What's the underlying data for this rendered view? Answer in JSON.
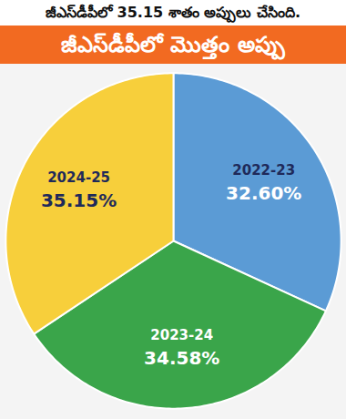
{
  "chart_data": {
    "type": "pie",
    "subtitle": "జీఎస్‌డీపీలో 35.15 శాతం అప్పులు చేసింది.",
    "title": "జీఎస్‌డీపీలో మొత్తం అప్పు",
    "categories": [
      "2022-23",
      "2023-24",
      "2024-25"
    ],
    "values": [
      32.6,
      34.58,
      35.15
    ],
    "value_labels": [
      "32.60%",
      "34.58%",
      "35.15%"
    ],
    "colors": [
      "#5b9bd5",
      "#3aa54a",
      "#f7cf3b"
    ],
    "data_labels": true
  }
}
